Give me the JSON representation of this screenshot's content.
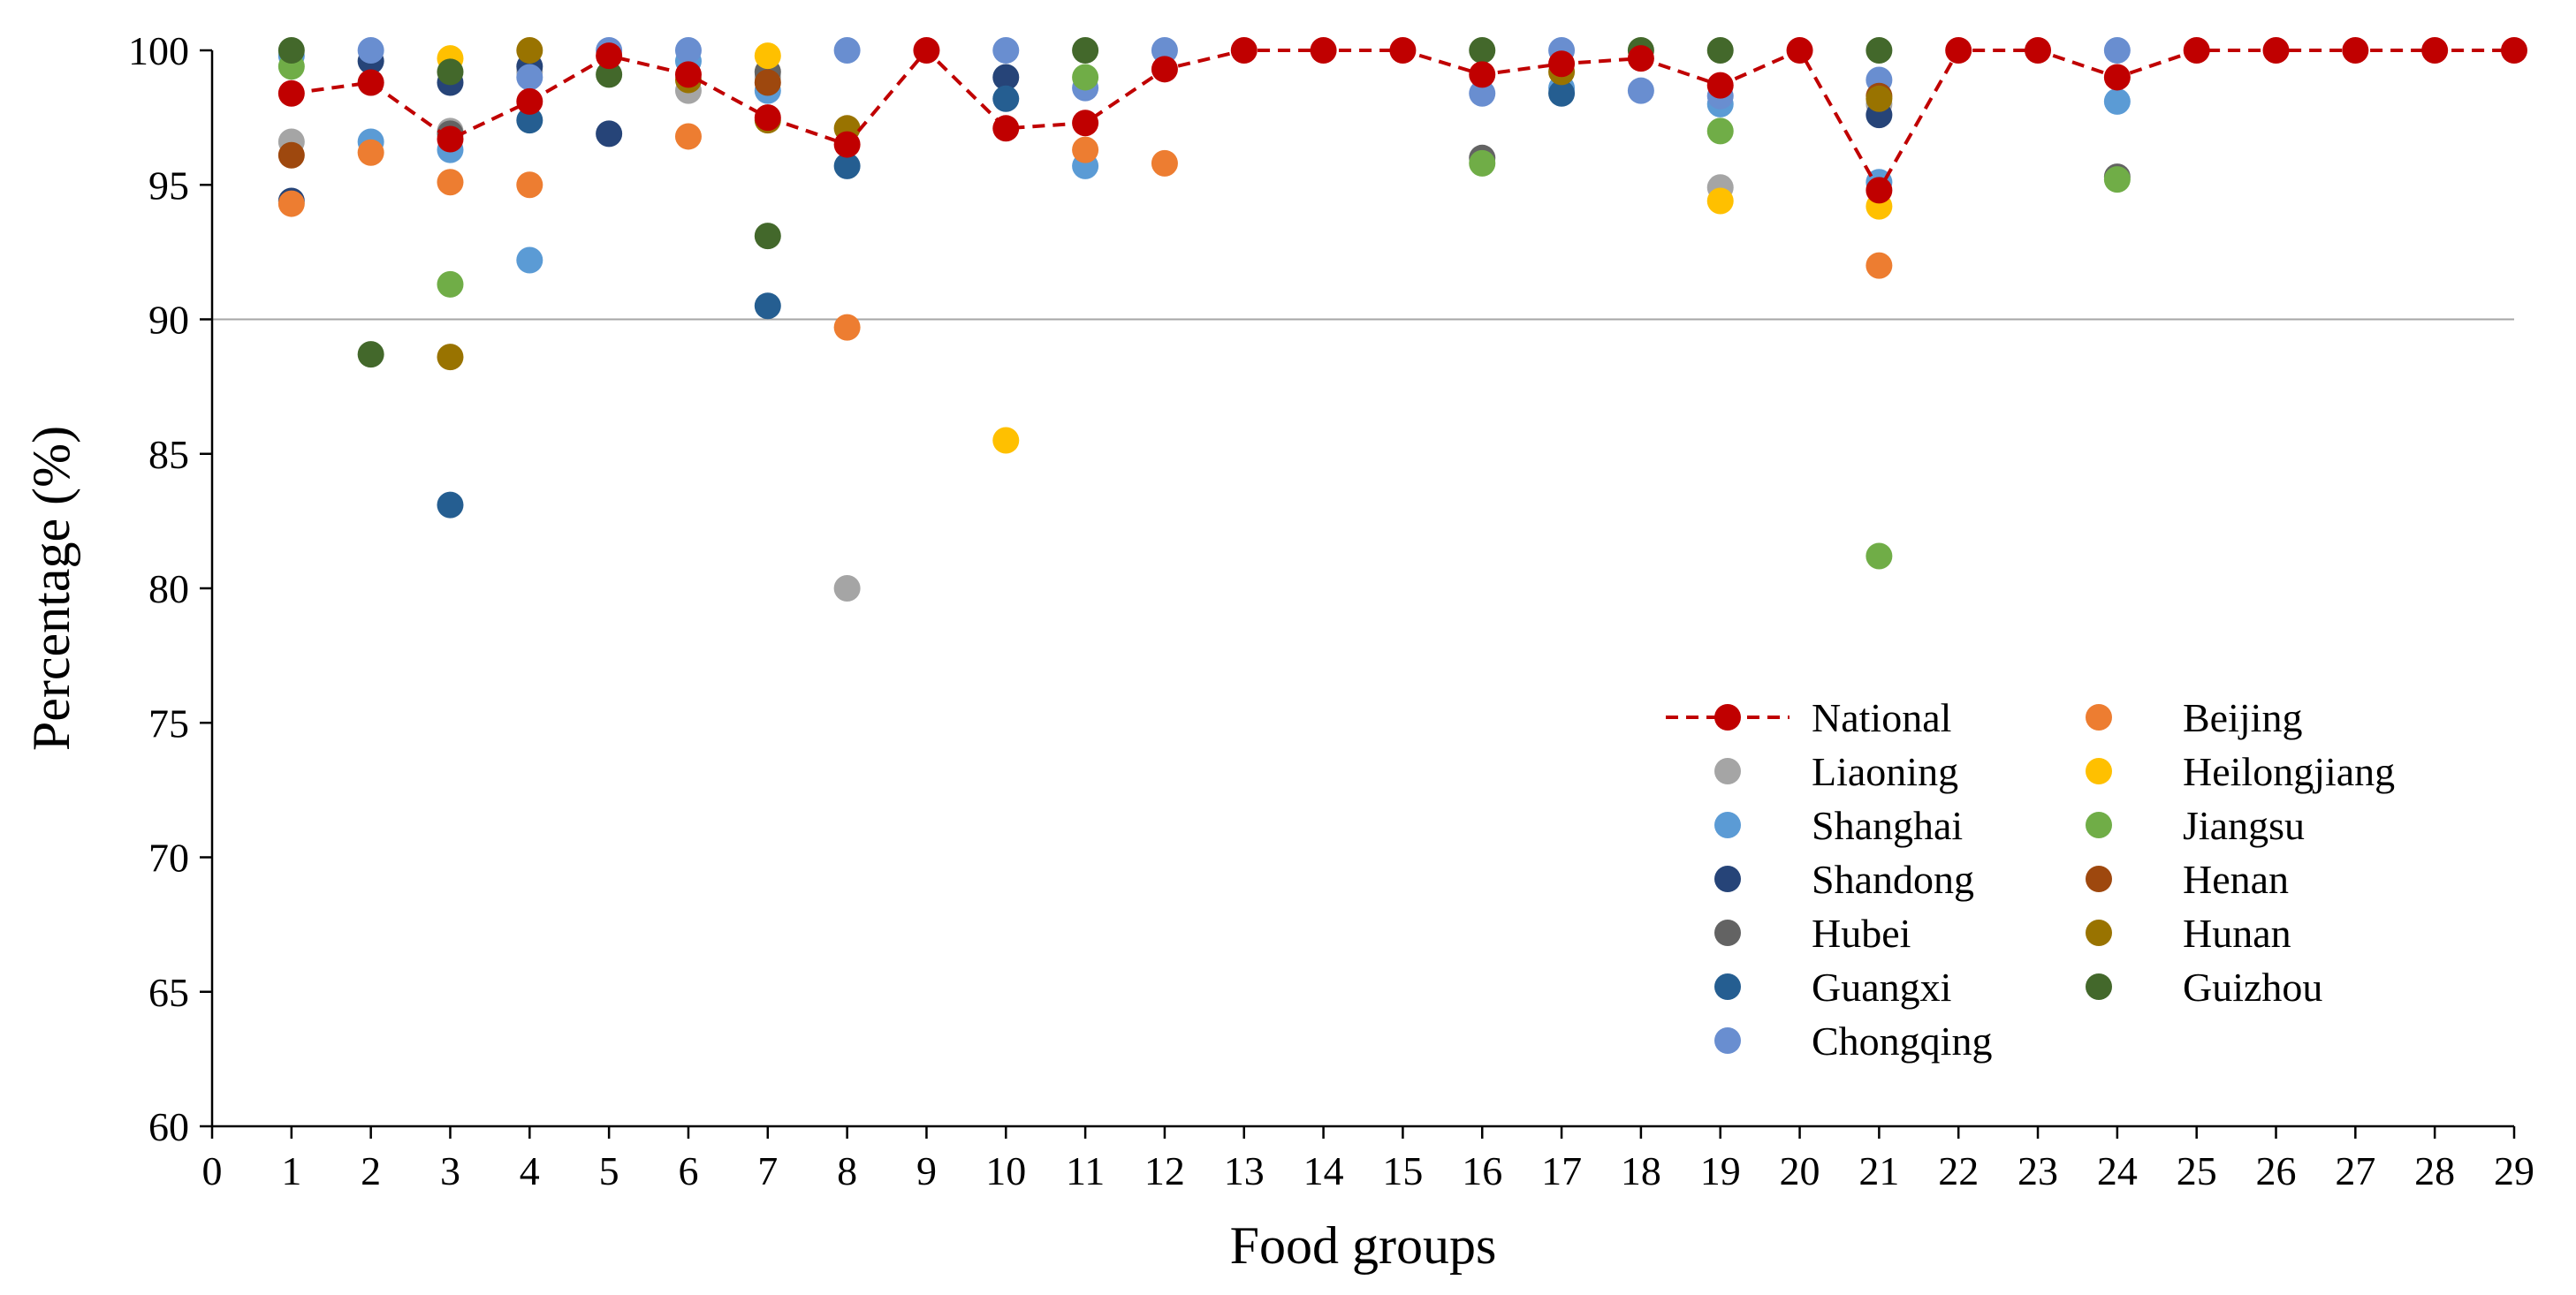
{
  "chart_data": {
    "type": "scatter",
    "title": "",
    "xlabel": "Food groups",
    "ylabel": "Percentage (%)",
    "xlim": [
      0,
      29
    ],
    "ylim": [
      60,
      100
    ],
    "x_ticks": [
      "0",
      "1",
      "2",
      "3",
      "4",
      "5",
      "6",
      "7",
      "8",
      "9",
      "10",
      "11",
      "12",
      "13",
      "14",
      "15",
      "16",
      "17",
      "18",
      "19",
      "20",
      "21",
      "22",
      "23",
      "24",
      "25",
      "26",
      "27",
      "28",
      "29"
    ],
    "y_ticks": [
      "60",
      "65",
      "70",
      "75",
      "80",
      "85",
      "90",
      "95",
      "100"
    ],
    "reference_line": 90,
    "legend_position": "lower-right",
    "series": [
      {
        "name": "Liaoning",
        "color": "#a5a5a5",
        "style": "marker",
        "points": [
          [
            1,
            96.6
          ],
          [
            2,
            98.8
          ],
          [
            3,
            97.0
          ],
          [
            4,
            99.2
          ],
          [
            6,
            98.5
          ],
          [
            7,
            99.0
          ],
          [
            8,
            80.0
          ],
          [
            19,
            94.9
          ],
          [
            21,
            98.0
          ]
        ]
      },
      {
        "name": "Shanghai",
        "color": "#5b9bd5",
        "style": "marker",
        "points": [
          [
            1,
            99.8
          ],
          [
            2,
            96.6
          ],
          [
            3,
            96.3
          ],
          [
            4,
            92.2
          ],
          [
            6,
            99.6
          ],
          [
            7,
            98.5
          ],
          [
            11,
            95.7
          ],
          [
            17,
            98.6
          ],
          [
            19,
            98.0
          ],
          [
            21,
            95.1
          ],
          [
            24,
            98.1
          ]
        ]
      },
      {
        "name": "Shandong",
        "color": "#264478",
        "style": "marker",
        "points": [
          [
            1,
            94.4
          ],
          [
            2,
            99.6
          ],
          [
            3,
            98.8
          ],
          [
            4,
            99.4
          ],
          [
            5,
            96.9
          ],
          [
            10,
            99.0
          ],
          [
            21,
            97.6
          ]
        ]
      },
      {
        "name": "Hubei",
        "color": "#636363",
        "style": "marker",
        "points": [
          [
            3,
            96.9
          ],
          [
            7,
            99.2
          ],
          [
            16,
            96.0
          ],
          [
            24,
            95.3
          ]
        ]
      },
      {
        "name": "Guangxi",
        "color": "#255e91",
        "style": "marker",
        "points": [
          [
            3,
            83.1
          ],
          [
            4,
            97.4
          ],
          [
            7,
            90.5
          ],
          [
            8,
            95.7
          ],
          [
            10,
            98.2
          ],
          [
            17,
            98.4
          ]
        ]
      },
      {
        "name": "Chongqing",
        "color": "#698ed0",
        "style": "marker",
        "points": [
          [
            2,
            100
          ],
          [
            4,
            99.0
          ],
          [
            5,
            100
          ],
          [
            6,
            100
          ],
          [
            8,
            100
          ],
          [
            10,
            100
          ],
          [
            11,
            98.6
          ],
          [
            12,
            100
          ],
          [
            16,
            98.4
          ],
          [
            17,
            100
          ],
          [
            18,
            98.5
          ],
          [
            19,
            98.3
          ],
          [
            21,
            98.9
          ],
          [
            24,
            100
          ]
        ]
      },
      {
        "name": "Beijing",
        "color": "#ed7d31",
        "style": "marker",
        "points": [
          [
            1,
            94.3
          ],
          [
            2,
            96.2
          ],
          [
            3,
            95.1
          ],
          [
            4,
            95.0
          ],
          [
            6,
            96.8
          ],
          [
            8,
            89.7
          ],
          [
            11,
            96.3
          ],
          [
            12,
            95.8
          ],
          [
            21,
            92.0
          ]
        ]
      },
      {
        "name": "Heilongjiang",
        "color": "#ffc000",
        "style": "marker",
        "points": [
          [
            3,
            99.7
          ],
          [
            7,
            99.8
          ],
          [
            10,
            85.5
          ],
          [
            19,
            94.4
          ],
          [
            21,
            94.2
          ]
        ]
      },
      {
        "name": "Jiangsu",
        "color": "#70ad47",
        "style": "marker",
        "points": [
          [
            1,
            99.4
          ],
          [
            3,
            91.3
          ],
          [
            11,
            99.0
          ],
          [
            16,
            95.8
          ],
          [
            19,
            97.0
          ],
          [
            21,
            81.2
          ],
          [
            24,
            95.2
          ]
        ]
      },
      {
        "name": "Henan",
        "color": "#9e480e",
        "style": "marker",
        "points": [
          [
            1,
            96.1
          ],
          [
            7,
            98.8
          ],
          [
            21,
            98.3
          ]
        ]
      },
      {
        "name": "Hunan",
        "color": "#997300",
        "style": "marker",
        "points": [
          [
            3,
            88.6
          ],
          [
            4,
            100
          ],
          [
            6,
            98.9
          ],
          [
            7,
            97.4
          ],
          [
            8,
            97.1
          ],
          [
            17,
            99.2
          ],
          [
            21,
            98.2
          ]
        ]
      },
      {
        "name": "Guizhou",
        "color": "#43682b",
        "style": "marker",
        "points": [
          [
            1,
            100
          ],
          [
            2,
            88.7
          ],
          [
            3,
            99.2
          ],
          [
            5,
            99.1
          ],
          [
            7,
            93.1
          ],
          [
            11,
            100
          ],
          [
            16,
            100
          ],
          [
            18,
            100
          ],
          [
            19,
            100
          ],
          [
            21,
            100
          ]
        ]
      },
      {
        "name": "National",
        "color": "#c00000",
        "style": "dashed-line-marker",
        "points": [
          [
            1,
            98.4
          ],
          [
            2,
            98.8
          ],
          [
            3,
            96.7
          ],
          [
            4,
            98.1
          ],
          [
            5,
            99.8
          ],
          [
            6,
            99.1
          ],
          [
            7,
            97.5
          ],
          [
            8,
            96.5
          ],
          [
            9,
            100
          ],
          [
            10,
            97.1
          ],
          [
            11,
            97.3
          ],
          [
            12,
            99.3
          ],
          [
            13,
            100
          ],
          [
            14,
            100
          ],
          [
            15,
            100
          ],
          [
            16,
            99.1
          ],
          [
            17,
            99.5
          ],
          [
            18,
            99.7
          ],
          [
            19,
            98.7
          ],
          [
            20,
            100
          ],
          [
            21,
            94.8
          ],
          [
            22,
            100
          ],
          [
            23,
            100
          ],
          [
            24,
            99.0
          ],
          [
            25,
            100
          ],
          [
            26,
            100
          ],
          [
            27,
            100
          ],
          [
            28,
            100
          ],
          [
            29,
            100
          ]
        ]
      }
    ],
    "legend": {
      "columns": [
        [
          "National",
          "Liaoning",
          "Shanghai",
          "Shandong",
          "Hubei",
          "Guangxi",
          "Chongqing"
        ],
        [
          "Beijing",
          "Heilongjiang",
          "Jiangsu",
          "Henan",
          "Hunan",
          "Guizhou"
        ]
      ]
    }
  }
}
